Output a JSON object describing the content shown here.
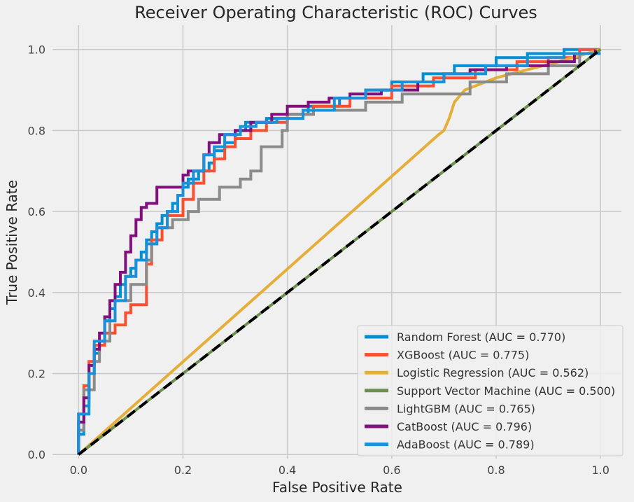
{
  "chart_data": {
    "type": "line",
    "title": "Receiver Operating Characteristic (ROC) Curves",
    "xlabel": "False Positive Rate",
    "ylabel": "True Positive Rate",
    "xlim": [
      -0.05,
      1.04
    ],
    "ylim": [
      -0.01,
      1.06
    ],
    "xticks": [
      0.0,
      0.2,
      0.4,
      0.6,
      0.8,
      1.0
    ],
    "yticks": [
      0.0,
      0.2,
      0.4,
      0.6,
      0.8,
      1.0
    ],
    "x_tick_labels": [
      "0.0",
      "0.2",
      "0.4",
      "0.6",
      "0.8",
      "1.0"
    ],
    "y_tick_labels": [
      "0.0",
      "0.2",
      "0.4",
      "0.6",
      "0.8",
      "1.0"
    ],
    "grid": true,
    "legend_position": "lower-right",
    "series": [
      {
        "name": "Random Forest (AUC = 0.770)",
        "color": "#008fd5",
        "x": [
          0,
          0,
          0.01,
          0.01,
          0.02,
          0.02,
          0.03,
          0.03,
          0.04,
          0.04,
          0.05,
          0.05,
          0.06,
          0.06,
          0.07,
          0.07,
          0.08,
          0.08,
          0.09,
          0.09,
          0.1,
          0.1,
          0.11,
          0.11,
          0.12,
          0.12,
          0.13,
          0.13,
          0.14,
          0.14,
          0.15,
          0.15,
          0.16,
          0.16,
          0.17,
          0.17,
          0.18,
          0.18,
          0.19,
          0.19,
          0.2,
          0.2,
          0.21,
          0.21,
          0.23,
          0.23,
          0.25,
          0.25,
          0.26,
          0.26,
          0.28,
          0.28,
          0.3,
          0.3,
          0.32,
          0.32,
          0.36,
          0.36,
          0.4,
          0.4,
          0.44,
          0.44,
          0.5,
          0.5,
          0.55,
          0.55,
          0.6,
          0.6,
          0.66,
          0.66,
          0.72,
          0.72,
          0.8,
          0.8,
          0.86,
          0.86,
          0.93,
          0.93,
          1.0
        ],
        "y": [
          0,
          0.05,
          0.05,
          0.12,
          0.12,
          0.2,
          0.2,
          0.25,
          0.25,
          0.28,
          0.28,
          0.33,
          0.33,
          0.36,
          0.36,
          0.39,
          0.39,
          0.42,
          0.42,
          0.44,
          0.44,
          0.46,
          0.46,
          0.48,
          0.48,
          0.5,
          0.5,
          0.53,
          0.53,
          0.55,
          0.55,
          0.57,
          0.57,
          0.59,
          0.59,
          0.6,
          0.6,
          0.62,
          0.62,
          0.64,
          0.64,
          0.66,
          0.66,
          0.68,
          0.68,
          0.7,
          0.7,
          0.72,
          0.72,
          0.75,
          0.75,
          0.77,
          0.77,
          0.8,
          0.8,
          0.82,
          0.82,
          0.83,
          0.83,
          0.84,
          0.84,
          0.86,
          0.86,
          0.88,
          0.88,
          0.9,
          0.9,
          0.92,
          0.92,
          0.94,
          0.94,
          0.96,
          0.96,
          0.98,
          0.98,
          0.99,
          0.99,
          1.0,
          1.0
        ]
      },
      {
        "name": "XGBoost (AUC = 0.775)",
        "color": "#fc4f30",
        "x": [
          0,
          0,
          0.01,
          0.01,
          0.02,
          0.02,
          0.03,
          0.03,
          0.05,
          0.05,
          0.07,
          0.07,
          0.09,
          0.09,
          0.1,
          0.1,
          0.13,
          0.13,
          0.14,
          0.14,
          0.16,
          0.16,
          0.17,
          0.17,
          0.2,
          0.2,
          0.22,
          0.22,
          0.24,
          0.24,
          0.26,
          0.26,
          0.28,
          0.28,
          0.3,
          0.3,
          0.33,
          0.33,
          0.36,
          0.36,
          0.4,
          0.4,
          0.45,
          0.45,
          0.52,
          0.52,
          0.6,
          0.6,
          0.68,
          0.68,
          0.76,
          0.76,
          0.84,
          0.84,
          0.9,
          0.9,
          0.96,
          0.96,
          1.0
        ],
        "y": [
          0,
          0.1,
          0.1,
          0.17,
          0.17,
          0.23,
          0.23,
          0.27,
          0.27,
          0.3,
          0.3,
          0.32,
          0.32,
          0.35,
          0.35,
          0.37,
          0.37,
          0.47,
          0.47,
          0.53,
          0.53,
          0.56,
          0.56,
          0.59,
          0.59,
          0.63,
          0.63,
          0.67,
          0.67,
          0.7,
          0.7,
          0.73,
          0.73,
          0.76,
          0.76,
          0.78,
          0.78,
          0.8,
          0.8,
          0.82,
          0.82,
          0.84,
          0.84,
          0.86,
          0.86,
          0.88,
          0.88,
          0.91,
          0.91,
          0.93,
          0.93,
          0.95,
          0.95,
          0.97,
          0.97,
          0.98,
          0.98,
          1.0,
          1.0
        ]
      },
      {
        "name": "Logistic Regression (AUC = 0.562)",
        "color": "#e5ae38",
        "x": [
          0,
          0.69,
          0.69,
          0.7,
          0.7,
          0.71,
          0.71,
          0.72,
          0.72,
          0.74,
          0.74,
          0.76,
          0.76,
          0.8,
          0.8,
          0.86,
          0.86,
          0.92,
          0.92,
          1.0
        ],
        "y": [
          0,
          0.79,
          0.79,
          0.8,
          0.8,
          0.83,
          0.83,
          0.87,
          0.87,
          0.9,
          0.9,
          0.91,
          0.91,
          0.93,
          0.93,
          0.95,
          0.95,
          0.97,
          0.97,
          1.0
        ]
      },
      {
        "name": "Support Vector Machine (AUC = 0.500)",
        "color": "#6d904f",
        "x": [
          0,
          1.0
        ],
        "y": [
          0,
          1.0
        ]
      },
      {
        "name": "LightGBM (AUC = 0.765)",
        "color": "#8b8b8b",
        "x": [
          0,
          0,
          0.01,
          0.01,
          0.03,
          0.03,
          0.04,
          0.04,
          0.06,
          0.06,
          0.07,
          0.07,
          0.1,
          0.1,
          0.13,
          0.13,
          0.14,
          0.14,
          0.15,
          0.15,
          0.18,
          0.18,
          0.21,
          0.21,
          0.23,
          0.23,
          0.27,
          0.27,
          0.31,
          0.31,
          0.33,
          0.33,
          0.35,
          0.35,
          0.39,
          0.39,
          0.4,
          0.4,
          0.45,
          0.45,
          0.55,
          0.55,
          0.62,
          0.62,
          0.75,
          0.75,
          0.82,
          0.82,
          0.9,
          0.9,
          0.96,
          0.96,
          1.0
        ],
        "y": [
          0,
          0.06,
          0.06,
          0.16,
          0.16,
          0.23,
          0.23,
          0.28,
          0.28,
          0.33,
          0.33,
          0.38,
          0.38,
          0.42,
          0.42,
          0.48,
          0.48,
          0.52,
          0.52,
          0.56,
          0.56,
          0.58,
          0.58,
          0.6,
          0.6,
          0.63,
          0.63,
          0.66,
          0.66,
          0.68,
          0.68,
          0.7,
          0.7,
          0.76,
          0.76,
          0.8,
          0.8,
          0.84,
          0.84,
          0.85,
          0.85,
          0.87,
          0.87,
          0.89,
          0.89,
          0.92,
          0.92,
          0.94,
          0.94,
          0.96,
          0.96,
          0.99,
          0.99
        ]
      },
      {
        "name": "CatBoost (AUC = 0.796)",
        "color": "#810f7c",
        "x": [
          0,
          0,
          0.01,
          0.01,
          0.02,
          0.02,
          0.03,
          0.03,
          0.04,
          0.04,
          0.05,
          0.05,
          0.06,
          0.06,
          0.07,
          0.07,
          0.08,
          0.08,
          0.09,
          0.09,
          0.1,
          0.1,
          0.11,
          0.11,
          0.12,
          0.12,
          0.13,
          0.13,
          0.15,
          0.15,
          0.17,
          0.17,
          0.2,
          0.2,
          0.21,
          0.21,
          0.24,
          0.24,
          0.25,
          0.25,
          0.27,
          0.27,
          0.3,
          0.3,
          0.33,
          0.33,
          0.37,
          0.37,
          0.4,
          0.4,
          0.44,
          0.44,
          0.48,
          0.48,
          0.52,
          0.52,
          0.58,
          0.58,
          0.65,
          0.65,
          0.7,
          0.7,
          0.75,
          0.75,
          0.82,
          0.82,
          0.9,
          0.9,
          0.95,
          0.95,
          0.99,
          0.99
        ],
        "y": [
          0,
          0.08,
          0.08,
          0.14,
          0.14,
          0.22,
          0.22,
          0.26,
          0.26,
          0.3,
          0.3,
          0.34,
          0.34,
          0.38,
          0.38,
          0.42,
          0.42,
          0.45,
          0.45,
          0.5,
          0.5,
          0.54,
          0.54,
          0.58,
          0.58,
          0.61,
          0.61,
          0.62,
          0.62,
          0.66,
          0.66,
          0.66,
          0.66,
          0.69,
          0.69,
          0.7,
          0.7,
          0.74,
          0.74,
          0.77,
          0.77,
          0.79,
          0.79,
          0.8,
          0.8,
          0.82,
          0.82,
          0.84,
          0.84,
          0.86,
          0.86,
          0.87,
          0.87,
          0.88,
          0.88,
          0.89,
          0.89,
          0.9,
          0.9,
          0.92,
          0.92,
          0.94,
          0.94,
          0.95,
          0.95,
          0.96,
          0.96,
          0.97,
          0.97,
          0.99,
          0.99,
          1.0
        ]
      },
      {
        "name": "AdaBoost (AUC = 0.789)",
        "color": "#1a91d9",
        "x": [
          0,
          0,
          0.02,
          0.02,
          0.03,
          0.03,
          0.05,
          0.05,
          0.07,
          0.07,
          0.09,
          0.09,
          0.11,
          0.11,
          0.13,
          0.13,
          0.15,
          0.15,
          0.17,
          0.17,
          0.19,
          0.19,
          0.2,
          0.2,
          0.22,
          0.22,
          0.24,
          0.24,
          0.26,
          0.26,
          0.28,
          0.28,
          0.31,
          0.31,
          0.34,
          0.34,
          0.38,
          0.38,
          0.43,
          0.43,
          0.49,
          0.49,
          0.55,
          0.55,
          0.62,
          0.62,
          0.7,
          0.7,
          0.78,
          0.78,
          0.86,
          0.86,
          0.93,
          0.93,
          1.0
        ],
        "y": [
          0,
          0.1,
          0.1,
          0.2,
          0.2,
          0.28,
          0.28,
          0.33,
          0.33,
          0.38,
          0.38,
          0.44,
          0.44,
          0.48,
          0.48,
          0.52,
          0.52,
          0.56,
          0.56,
          0.6,
          0.6,
          0.64,
          0.64,
          0.67,
          0.67,
          0.7,
          0.7,
          0.74,
          0.74,
          0.76,
          0.76,
          0.79,
          0.79,
          0.81,
          0.81,
          0.82,
          0.82,
          0.83,
          0.83,
          0.85,
          0.85,
          0.88,
          0.88,
          0.9,
          0.9,
          0.92,
          0.92,
          0.94,
          0.94,
          0.96,
          0.96,
          0.98,
          0.98,
          0.99,
          0.99
        ]
      }
    ],
    "reference_line": {
      "x": [
        0,
        1
      ],
      "y": [
        0,
        1
      ],
      "color": "#000000",
      "style": "dashed"
    }
  }
}
